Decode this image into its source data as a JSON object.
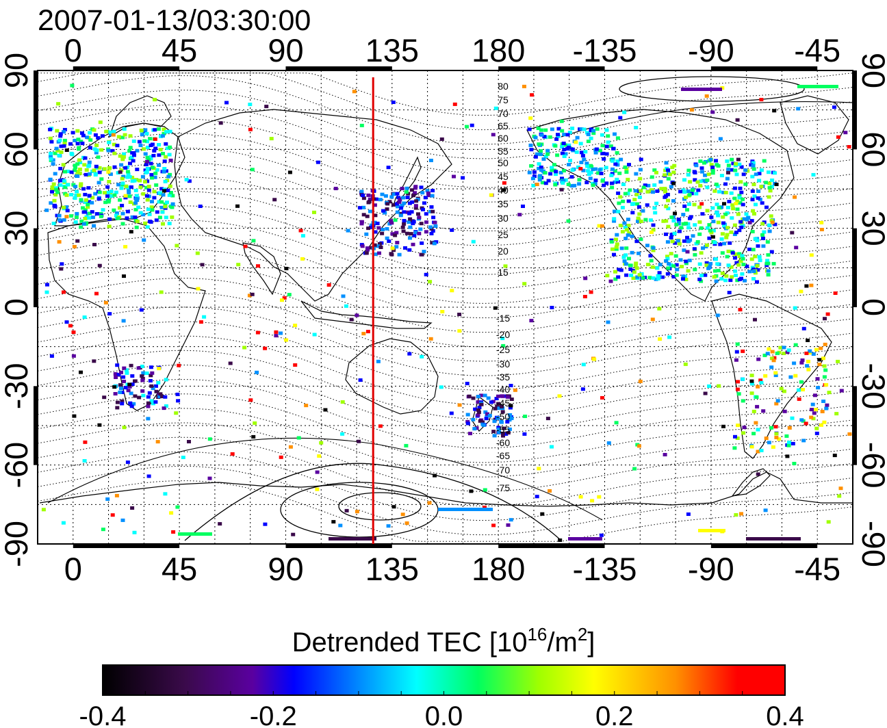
{
  "title": "2007-01-13/03:30:00",
  "map": {
    "lon_ticks_top": [
      "0",
      "45",
      "90",
      "135",
      "180",
      "-135",
      "-90",
      "-45"
    ],
    "lon_ticks_bottom": [
      "0",
      "45",
      "90",
      "135",
      "180",
      "-135",
      "-90",
      "-45"
    ],
    "lat_ticks_left": [
      "90",
      "60",
      "30",
      "0",
      "-30",
      "-60",
      "-90"
    ],
    "lat_ticks_right": [
      "90",
      "60",
      "30",
      "0",
      "-30",
      "-60",
      "-90"
    ],
    "lon_tick_values": [
      0,
      45,
      90,
      135,
      180,
      225,
      270,
      315
    ],
    "lat_tick_values": [
      90,
      60,
      30,
      0,
      -30,
      -60,
      -90
    ],
    "lon_range": [
      -15,
      330
    ],
    "lat_range": [
      -90,
      90
    ],
    "grid": true,
    "meridian_line": {
      "lon": 127,
      "color": "#e00000"
    },
    "contour_labels_north": [
      "80",
      "75",
      "70",
      "65",
      "60",
      "55",
      "50",
      "45",
      "40",
      "35",
      "30",
      "25",
      "20",
      "15"
    ],
    "contour_labels_south": [
      "-15",
      "-20",
      "-25",
      "-30",
      "-35",
      "-40",
      "-45",
      "-50",
      "-55",
      "-60",
      "-65",
      "-70",
      "-75"
    ]
  },
  "colorbar": {
    "title": "Detrended TEC  [10",
    "title_sup": "16",
    "title_unit": "/m",
    "title_sup2": "2",
    "title_end": "]",
    "ticks": [
      "-0.4",
      "-0.2",
      "0.0",
      "0.2",
      "0.4"
    ],
    "min": -0.4,
    "max": 0.4,
    "colors": [
      "#000000",
      "#3a0a4a",
      "#5a00a0",
      "#0000ff",
      "#0090ff",
      "#00ffff",
      "#00ff60",
      "#a0ff00",
      "#ffff00",
      "#ff9000",
      "#ff0000"
    ]
  }
}
